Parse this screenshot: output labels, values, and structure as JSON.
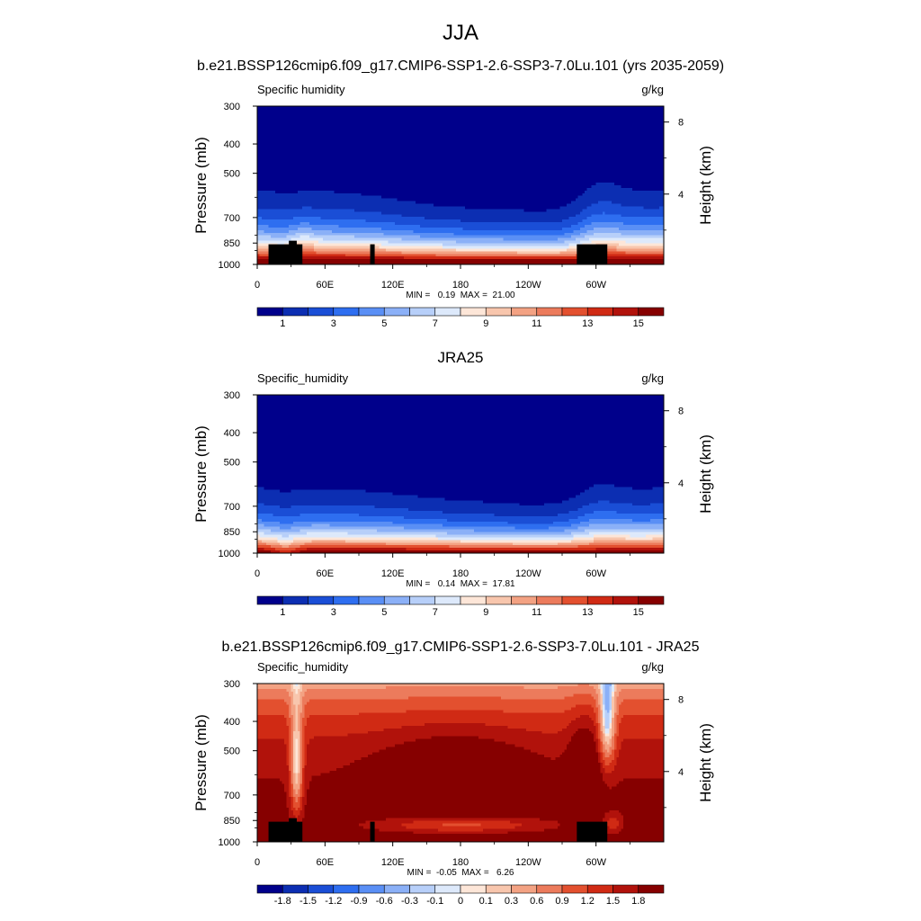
{
  "figure": {
    "title": "JJA",
    "subtitle": "b.e21.BSSP126cmip6.f09_g17.CMIP6-SSP1-2.6-SSP3-7.0Lu.101 (yrs 2035-2059)"
  },
  "colors": {
    "levels16": [
      "#00008b",
      "#0c2eb2",
      "#1a4ed6",
      "#2e6ef0",
      "#5a8ff5",
      "#8bb0f7",
      "#b7cff9",
      "#dde9fb",
      "#fde6d8",
      "#f8c6ad",
      "#f3a283",
      "#ec7b5c",
      "#e3502f",
      "#d02a14",
      "#b1120b",
      "#860000"
    ]
  },
  "chart_data": [
    {
      "type": "heatmap",
      "left_title": "Specific humidity",
      "right_title": "g/kg",
      "center_title": "",
      "ylabel": "Pressure (mb)",
      "ylabel_right": "Height (km)",
      "x_ticks": [
        "0",
        "60E",
        "120E",
        "180",
        "120W",
        "60W"
      ],
      "x_tick_values": [
        0,
        60,
        120,
        180,
        240,
        300
      ],
      "xlim": [
        0,
        360
      ],
      "y_ticks": [
        "300",
        "400",
        "500",
        "700",
        "850",
        "1000"
      ],
      "y_tick_values": [
        300,
        400,
        500,
        700,
        850,
        1000
      ],
      "ylim": [
        300,
        1000
      ],
      "height_ticks": [
        "8",
        "4"
      ],
      "height_tick_values": [
        8,
        4
      ],
      "stats": "MIN =   0.19  MAX =  21.00",
      "colorbar_labels": [
        "1",
        "3",
        "5",
        "7",
        "9",
        "11",
        "13",
        "15"
      ],
      "levels": [
        1,
        2,
        3,
        4,
        5,
        6,
        7,
        8,
        9,
        10,
        11,
        12,
        13,
        14,
        15
      ],
      "field": "model"
    },
    {
      "type": "heatmap",
      "left_title": "Specific_humidity",
      "right_title": "g/kg",
      "center_title": "JRA25",
      "ylabel": "Pressure (mb)",
      "ylabel_right": "Height (km)",
      "x_ticks": [
        "0",
        "60E",
        "120E",
        "180",
        "120W",
        "60W"
      ],
      "x_tick_values": [
        0,
        60,
        120,
        180,
        240,
        300
      ],
      "xlim": [
        0,
        360
      ],
      "y_ticks": [
        "300",
        "400",
        "500",
        "700",
        "850",
        "1000"
      ],
      "y_tick_values": [
        300,
        400,
        500,
        700,
        850,
        1000
      ],
      "ylim": [
        300,
        1000
      ],
      "height_ticks": [
        "8",
        "4"
      ],
      "height_tick_values": [
        8,
        4
      ],
      "stats": "MIN =   0.14  MAX =  17.81",
      "colorbar_labels": [
        "1",
        "3",
        "5",
        "7",
        "9",
        "11",
        "13",
        "15"
      ],
      "levels": [
        1,
        2,
        3,
        4,
        5,
        6,
        7,
        8,
        9,
        10,
        11,
        12,
        13,
        14,
        15
      ],
      "field": "obs"
    },
    {
      "type": "heatmap",
      "left_title": "Specific_humidity",
      "right_title": "g/kg",
      "center_title": "b.e21.BSSP126cmip6.f09_g17.CMIP6-SSP1-2.6-SSP3-7.0Lu.101 - JRA25",
      "ylabel": "Pressure (mb)",
      "ylabel_right": "Height (km)",
      "x_ticks": [
        "0",
        "60E",
        "120E",
        "180",
        "120W",
        "60W"
      ],
      "x_tick_values": [
        0,
        60,
        120,
        180,
        240,
        300
      ],
      "xlim": [
        0,
        360
      ],
      "y_ticks": [
        "300",
        "400",
        "500",
        "700",
        "850",
        "1000"
      ],
      "y_tick_values": [
        300,
        400,
        500,
        700,
        850,
        1000
      ],
      "ylim": [
        300,
        1000
      ],
      "height_ticks": [
        "8",
        "4"
      ],
      "height_tick_values": [
        8,
        4
      ],
      "stats": "MIN =  -0.05  MAX =   6.26",
      "colorbar_labels": [
        "-1.8",
        "-1.5",
        "-1.2",
        "-0.9",
        "-0.6",
        "-0.3",
        "-0.1",
        "0",
        "0.1",
        "0.3",
        "0.6",
        "0.9",
        "1.2",
        "1.5",
        "1.8"
      ],
      "levels": [
        -1.8,
        -1.5,
        -1.2,
        -0.9,
        -0.6,
        -0.3,
        -0.1,
        0,
        0.1,
        0.3,
        0.6,
        0.9,
        1.2,
        1.5,
        1.8
      ],
      "field": "diff"
    }
  ]
}
